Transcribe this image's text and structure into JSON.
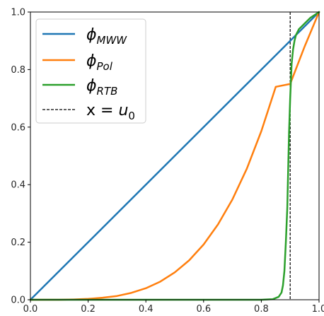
{
  "chart_data": {
    "type": "line",
    "title": "",
    "xlabel": "",
    "ylabel": "",
    "xlim": [
      0.0,
      1.0
    ],
    "ylim": [
      0.0,
      1.0
    ],
    "grid": false,
    "legend_position": "top-left",
    "x_ticks": [
      "0.0",
      "0.2",
      "0.4",
      "0.6",
      "0.8",
      "1.0"
    ],
    "y_ticks": [
      "0.0",
      "0.2",
      "0.4",
      "0.6",
      "0.8",
      "1.0"
    ],
    "series": [
      {
        "name": "φMWW",
        "label_main": "ϕ",
        "label_sub": "MWW",
        "color": "#1f77b4",
        "style": "solid",
        "x": [
          0.0,
          1.0
        ],
        "y": [
          0.0,
          1.0
        ]
      },
      {
        "name": "φPol",
        "label_main": "ϕ",
        "label_sub": "Pol",
        "color": "#ff7f0e",
        "style": "solid",
        "x": [
          0.0,
          0.05,
          0.1,
          0.15,
          0.2,
          0.25,
          0.3,
          0.35,
          0.4,
          0.45,
          0.5,
          0.55,
          0.6,
          0.65,
          0.7,
          0.75,
          0.8,
          0.85,
          0.9,
          0.95,
          1.0
        ],
        "y": [
          0.0,
          0.0,
          0.0,
          0.001,
          0.003,
          0.007,
          0.013,
          0.024,
          0.04,
          0.063,
          0.095,
          0.137,
          0.192,
          0.262,
          0.349,
          0.456,
          0.586,
          0.74,
          0.75,
          0.88,
          1.0
        ]
      },
      {
        "name": "φRTB",
        "label_main": "ϕ",
        "label_sub": "RTB",
        "color": "#2ca02c",
        "style": "solid",
        "x": [
          0.0,
          0.1,
          0.2,
          0.3,
          0.4,
          0.5,
          0.6,
          0.7,
          0.8,
          0.84,
          0.86,
          0.87,
          0.875,
          0.88,
          0.885,
          0.89,
          0.893,
          0.896,
          0.9,
          0.905,
          0.91,
          0.915,
          0.92,
          0.93,
          0.95,
          0.97,
          1.0
        ],
        "y": [
          0.0,
          0.0,
          0.0,
          0.0,
          0.0,
          0.0,
          0.0,
          0.0,
          0.0,
          0.002,
          0.01,
          0.025,
          0.05,
          0.1,
          0.2,
          0.32,
          0.45,
          0.58,
          0.7,
          0.82,
          0.87,
          0.9,
          0.92,
          0.94,
          0.96,
          0.98,
          1.0
        ]
      }
    ],
    "vline": {
      "x": 0.9,
      "label_main": "x = u",
      "label_sub": "0",
      "color": "#000000",
      "style": "dashed"
    }
  }
}
